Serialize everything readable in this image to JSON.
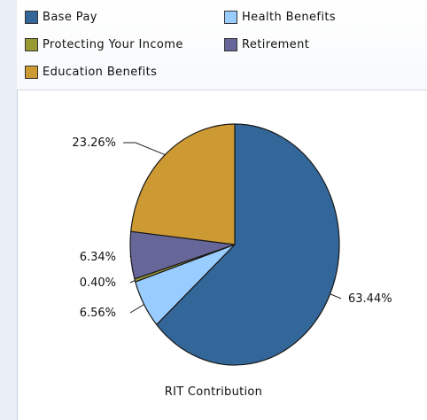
{
  "chart_data": {
    "type": "pie",
    "title": "RIT Contribution",
    "slices": [
      {
        "label": "Base Pay",
        "value": 63.44,
        "display": "63.44%",
        "color": "#336699"
      },
      {
        "label": "Health Benefits",
        "value": 6.56,
        "display": "6.56%",
        "color": "#99ccff"
      },
      {
        "label": "Protecting Your Income",
        "value": 0.4,
        "display": "0.40%",
        "color": "#999933"
      },
      {
        "label": "Retirement",
        "value": 6.34,
        "display": "6.34%",
        "color": "#666699"
      },
      {
        "label": "Education Benefits",
        "value": 23.26,
        "display": "23.26%",
        "color": "#cc9933"
      }
    ],
    "legend_placement": "top"
  },
  "legend": [
    {
      "label": "Base Pay",
      "color": "#336699"
    },
    {
      "label": "Health Benefits",
      "color": "#99ccff"
    },
    {
      "label": "Protecting Your Income",
      "color": "#999933"
    },
    {
      "label": "Retirement",
      "color": "#666699"
    },
    {
      "label": "Education Benefits",
      "color": "#cc9933"
    }
  ]
}
